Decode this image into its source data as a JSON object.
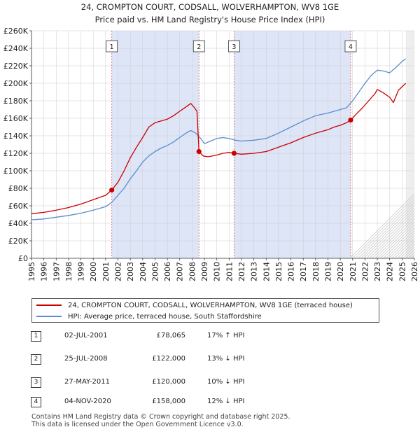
{
  "chart_data": {
    "type": "line",
    "title": "24, CROMPTON COURT, CODSALL, WOLVERHAMPTON, WV8 1GE",
    "subtitle": "Price paid vs. HM Land Registry's House Price Index (HPI)",
    "xlabel": "",
    "ylabel": "",
    "xlim": [
      1995,
      2026
    ],
    "ylim": [
      0,
      260000
    ],
    "x_ticks": [
      "1995",
      "1996",
      "1997",
      "1998",
      "1999",
      "2000",
      "2001",
      "2002",
      "2003",
      "2004",
      "2005",
      "2006",
      "2007",
      "2008",
      "2009",
      "2010",
      "2011",
      "2012",
      "2013",
      "2014",
      "2015",
      "2016",
      "2017",
      "2018",
      "2019",
      "2020",
      "2021",
      "2022",
      "2023",
      "2024",
      "2025",
      "2026"
    ],
    "y_ticks": [
      "£0",
      "£20K",
      "£40K",
      "£60K",
      "£80K",
      "£100K",
      "£120K",
      "£140K",
      "£160K",
      "£180K",
      "£200K",
      "£220K",
      "£240K",
      "£260K"
    ],
    "y_tick_values": [
      0,
      20000,
      40000,
      60000,
      80000,
      100000,
      120000,
      140000,
      160000,
      180000,
      200000,
      220000,
      240000,
      260000
    ],
    "series": [
      {
        "name": "24, CROMPTON COURT, CODSALL, WOLVERHAMPTON, WV8 1GE (terraced house)",
        "color": "#cc0000",
        "points": [
          [
            1995.0,
            51000
          ],
          [
            1996.0,
            52500
          ],
          [
            1997.0,
            55000
          ],
          [
            1998.0,
            58000
          ],
          [
            1999.0,
            62000
          ],
          [
            2000.0,
            67000
          ],
          [
            2001.0,
            72000
          ],
          [
            2001.5,
            78065
          ],
          [
            2002.0,
            87000
          ],
          [
            2002.5,
            100000
          ],
          [
            2003.0,
            115000
          ],
          [
            2003.5,
            127000
          ],
          [
            2004.0,
            138000
          ],
          [
            2004.5,
            150000
          ],
          [
            2005.0,
            155000
          ],
          [
            2005.5,
            157000
          ],
          [
            2006.0,
            159000
          ],
          [
            2006.5,
            163000
          ],
          [
            2007.0,
            168000
          ],
          [
            2007.5,
            173000
          ],
          [
            2007.9,
            177000
          ],
          [
            2008.2,
            172000
          ],
          [
            2008.4,
            168000
          ],
          [
            2008.56,
            122000
          ],
          [
            2008.9,
            117000
          ],
          [
            2009.3,
            116000
          ],
          [
            2010.0,
            118000
          ],
          [
            2010.5,
            120000
          ],
          [
            2011.0,
            121000
          ],
          [
            2011.4,
            120000
          ],
          [
            2012.0,
            119000
          ],
          [
            2013.0,
            120000
          ],
          [
            2014.0,
            122000
          ],
          [
            2015.0,
            127000
          ],
          [
            2016.0,
            132000
          ],
          [
            2017.0,
            138000
          ],
          [
            2018.0,
            143000
          ],
          [
            2019.0,
            147000
          ],
          [
            2019.5,
            150000
          ],
          [
            2020.0,
            152000
          ],
          [
            2020.5,
            155000
          ],
          [
            2020.84,
            158000
          ],
          [
            2021.3,
            165000
          ],
          [
            2021.8,
            172000
          ],
          [
            2022.3,
            180000
          ],
          [
            2022.8,
            188000
          ],
          [
            2023.0,
            193000
          ],
          [
            2023.5,
            189000
          ],
          [
            2024.0,
            184000
          ],
          [
            2024.3,
            178000
          ],
          [
            2024.7,
            192000
          ],
          [
            2025.0,
            196000
          ],
          [
            2025.3,
            200000
          ]
        ]
      },
      {
        "name": "HPI: Average price, terraced house, South Staffordshire",
        "color": "#5b8ccc",
        "points": [
          [
            1995.0,
            44000
          ],
          [
            1996.0,
            45000
          ],
          [
            1997.0,
            47000
          ],
          [
            1998.0,
            49000
          ],
          [
            1999.0,
            51500
          ],
          [
            2000.0,
            55000
          ],
          [
            2001.0,
            59000
          ],
          [
            2001.5,
            64000
          ],
          [
            2002.0,
            72000
          ],
          [
            2002.5,
            80000
          ],
          [
            2003.0,
            91000
          ],
          [
            2003.5,
            100000
          ],
          [
            2004.0,
            110000
          ],
          [
            2004.5,
            117000
          ],
          [
            2005.0,
            122000
          ],
          [
            2005.5,
            126000
          ],
          [
            2006.0,
            129000
          ],
          [
            2006.5,
            133000
          ],
          [
            2007.0,
            138000
          ],
          [
            2007.5,
            143000
          ],
          [
            2007.9,
            146000
          ],
          [
            2008.3,
            143000
          ],
          [
            2008.7,
            137000
          ],
          [
            2009.0,
            131000
          ],
          [
            2009.5,
            134000
          ],
          [
            2010.0,
            137000
          ],
          [
            2010.5,
            138000
          ],
          [
            2011.0,
            137000
          ],
          [
            2011.5,
            135000
          ],
          [
            2012.0,
            134000
          ],
          [
            2013.0,
            135000
          ],
          [
            2014.0,
            137000
          ],
          [
            2015.0,
            143000
          ],
          [
            2016.0,
            150000
          ],
          [
            2017.0,
            157000
          ],
          [
            2018.0,
            163000
          ],
          [
            2019.0,
            166000
          ],
          [
            2019.5,
            168000
          ],
          [
            2020.0,
            170000
          ],
          [
            2020.5,
            172000
          ],
          [
            2021.0,
            180000
          ],
          [
            2021.5,
            190000
          ],
          [
            2022.0,
            200000
          ],
          [
            2022.5,
            209000
          ],
          [
            2023.0,
            215000
          ],
          [
            2023.5,
            214000
          ],
          [
            2024.0,
            212000
          ],
          [
            2024.5,
            218000
          ],
          [
            2025.0,
            225000
          ],
          [
            2025.3,
            228000
          ]
        ]
      }
    ],
    "sales": [
      {
        "label": "1",
        "x": 2001.5,
        "y": 78065
      },
      {
        "label": "2",
        "x": 2008.56,
        "y": 122000
      },
      {
        "label": "3",
        "x": 2011.4,
        "y": 120000
      },
      {
        "label": "4",
        "x": 2020.84,
        "y": 158000
      }
    ],
    "shaded_regions": [
      [
        2001.5,
        2008.56
      ],
      [
        2011.4,
        2020.84
      ]
    ],
    "forecast_from": 2025.3
  },
  "legend": {
    "property_label": "24, CROMPTON COURT, CODSALL, WOLVERHAMPTON, WV8 1GE (terraced house)",
    "hpi_label": "HPI: Average price, terraced house, South Staffordshire"
  },
  "transactions": [
    {
      "num": "1",
      "date": "02-JUL-2001",
      "price": "£78,065",
      "hpi": "17% ↑ HPI"
    },
    {
      "num": "2",
      "date": "25-JUL-2008",
      "price": "£122,000",
      "hpi": "13% ↓ HPI"
    },
    {
      "num": "3",
      "date": "27-MAY-2011",
      "price": "£120,000",
      "hpi": "10% ↓ HPI"
    },
    {
      "num": "4",
      "date": "04-NOV-2020",
      "price": "£158,000",
      "hpi": "12% ↓ HPI"
    }
  ],
  "footer": {
    "line1": "Contains HM Land Registry data © Crown copyright and database right 2025.",
    "line2": "This data is licensed under the Open Government Licence v3.0."
  },
  "colors": {
    "property_line": "#cc0000",
    "hpi_line": "#5b8ccc",
    "shade": "#dde5f7",
    "marker_line": "#e06060"
  }
}
